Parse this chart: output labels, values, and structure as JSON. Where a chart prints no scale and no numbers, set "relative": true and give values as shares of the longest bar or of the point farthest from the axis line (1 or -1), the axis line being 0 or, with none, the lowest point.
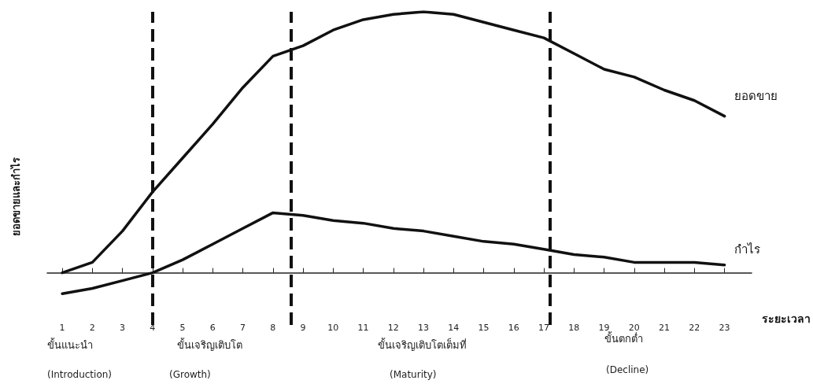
{
  "chart_data": {
    "type": "line",
    "relative": true,
    "xlabel": "ระยะเวลา",
    "ylabel": "ยอดขายและกำไร",
    "x": [
      1,
      2,
      3,
      4,
      5,
      6,
      7,
      8,
      9,
      10,
      11,
      12,
      13,
      14,
      15,
      16,
      17,
      18,
      19,
      20,
      21,
      22,
      23
    ],
    "xlim": [
      0.5,
      23.9
    ],
    "xticks": [
      1,
      2,
      3,
      4,
      5,
      6,
      7,
      8,
      9,
      10,
      11,
      12,
      13,
      14,
      15,
      16,
      17,
      18,
      19,
      20,
      21,
      22,
      23
    ],
    "series": [
      {
        "name": "ยอดขาย",
        "color": "#111111",
        "values": [
          0,
          0.04,
          0.16,
          0.31,
          0.44,
          0.57,
          0.71,
          0.83,
          0.87,
          0.93,
          0.97,
          0.99,
          1,
          0.99,
          0.96,
          0.93,
          0.9,
          0.84,
          0.78,
          0.75,
          0.7,
          0.66,
          0.6
        ]
      },
      {
        "name": "กำไร",
        "color": "#111111",
        "values": [
          -0.08,
          -0.06,
          -0.03,
          0,
          0.05,
          0.11,
          0.17,
          0.23,
          0.22,
          0.2,
          0.19,
          0.17,
          0.16,
          0.14,
          0.12,
          0.11,
          0.09,
          0.07,
          0.06,
          0.04,
          0.04,
          0.04,
          0.03
        ]
      }
    ],
    "ref_lines": [
      {
        "axis": "x",
        "value": 4,
        "label": null,
        "color": "#111111",
        "line_style": "dashed"
      },
      {
        "axis": "x",
        "value": 8.6,
        "label": null,
        "color": "#111111",
        "line_style": "dashed"
      },
      {
        "axis": "x",
        "value": 17.2,
        "label": null,
        "color": "#111111",
        "line_style": "dashed"
      }
    ],
    "annotations": [
      "ขั้นแนะนำ",
      "(Introduction)",
      "ขั้นเจริญเติบโต",
      "(Growth)",
      "ขั้นเจริญเติบโตเต็มที่",
      "(Maturity)",
      "ขั้นตกต่ำ",
      "(Decline)"
    ],
    "marker": "none",
    "line_style": "solid",
    "grid": false,
    "legend": false
  }
}
